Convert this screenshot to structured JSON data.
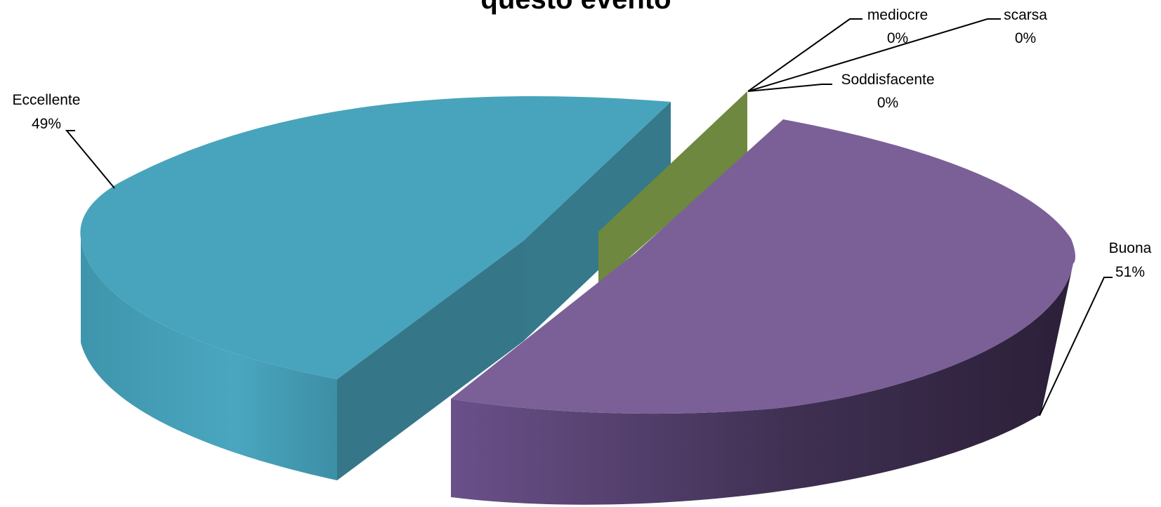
{
  "chart_data": {
    "type": "pie",
    "style": "3d-exploded",
    "title": "questo evento",
    "slices": [
      {
        "key": "eccellente",
        "name": "Eccellente",
        "value": 49,
        "label": "49%",
        "color": "#47A4BC"
      },
      {
        "key": "buona",
        "name": "Buona",
        "value": 51,
        "label": "51%",
        "color": "#7B6098"
      },
      {
        "key": "soddisfacente",
        "name": "Soddisfacente",
        "value": 0,
        "label": "0%",
        "color": "#6E883F"
      },
      {
        "key": "mediocre",
        "name": "mediocre",
        "value": 0,
        "label": "0%",
        "color": "#6E883F"
      },
      {
        "key": "scarsa",
        "name": "scarsa",
        "value": 0,
        "label": "0%",
        "color": "#6E883F"
      }
    ]
  }
}
